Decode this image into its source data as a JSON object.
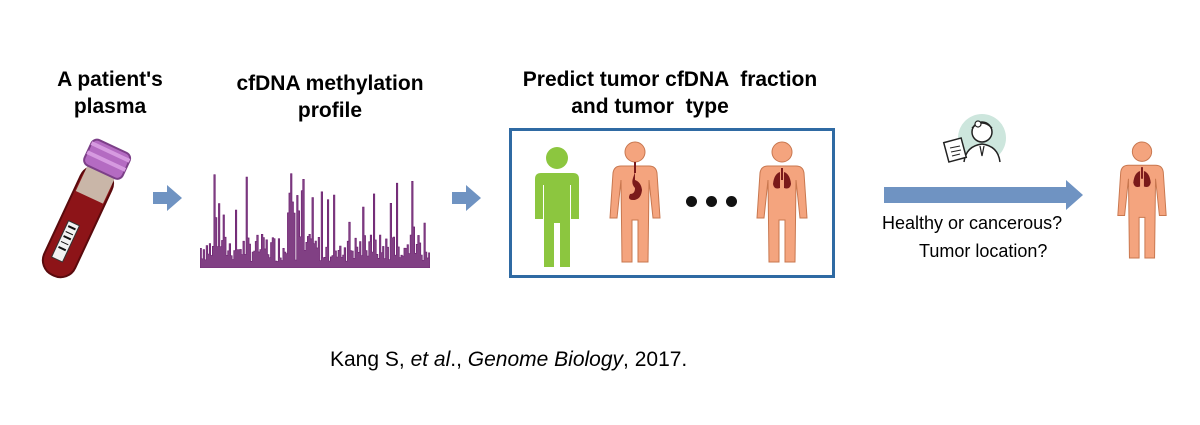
{
  "step1": {
    "title_line1": "A patient's",
    "title_line2": "plasma"
  },
  "step2": {
    "title_line1": "cfDNA methylation",
    "title_line2": "profile"
  },
  "step3": {
    "title_line1": "Predict tumor cfDNA  fraction",
    "title_line2": "and tumor  type"
  },
  "step4": {
    "question1": "Healthy or cancerous?",
    "question2": "Tumor location?"
  },
  "citation": {
    "author": "Kang S, ",
    "etal": "et al",
    "sep": "., ",
    "journal": "Genome Biology",
    "year": ", 2017."
  },
  "colors": {
    "arrow": "#6f93c2",
    "profile": "#6b1f6f",
    "box_border": "#2f6aa3",
    "healthy": "#8cc63f",
    "body": "#f4a47e",
    "organ": "#7a1a1a",
    "tube_cap": "#b46bc2",
    "blood": "#8d1418"
  }
}
